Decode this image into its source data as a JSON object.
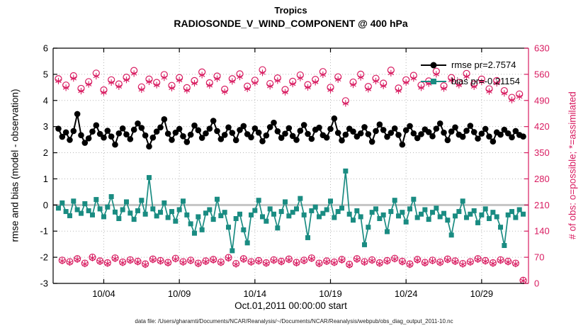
{
  "caption": "data file: /Users/gharamti/Documents/NCAR/Reanalysis/~/Documents/NCAR/Reanalysis/webpub/obs_diag_output_2011-10.nc",
  "colors": {
    "rmse": "#000000",
    "bias": "#1a8c82",
    "obs": "#d81b60",
    "grid": "#b8b8b8",
    "zero_line": "#c4c4c4",
    "axis": "#000000"
  },
  "chart_data": {
    "type": "line",
    "title": "Tropics",
    "subtitle": "RADIOSONDE_V_WIND_COMPONENT @ 400 hPa",
    "x_axis": {
      "label": "Oct.01,2011 00:00:00 start",
      "start_day": 0,
      "step_days": 0.25,
      "count": 124,
      "range_days": [
        -0.35,
        31.1
      ],
      "ticks": [
        {
          "day": 3,
          "label": "10/04"
        },
        {
          "day": 8,
          "label": "10/09"
        },
        {
          "day": 13,
          "label": "10/14"
        },
        {
          "day": 18,
          "label": "10/19"
        },
        {
          "day": 23,
          "label": "10/24"
        },
        {
          "day": 28,
          "label": "10/29"
        }
      ]
    },
    "y_left": {
      "label": "rmse and bias (model - observation)",
      "range": [
        -3,
        6
      ],
      "ticks": [
        -3,
        -2,
        -1,
        0,
        1,
        2,
        3,
        4,
        5,
        6
      ]
    },
    "y_right": {
      "label": "# of obs: o=possible; *=assimilated",
      "range": [
        0,
        630
      ],
      "ticks": [
        0,
        70,
        140,
        210,
        280,
        350,
        420,
        490,
        560,
        630
      ]
    },
    "legend": [
      {
        "series": "rmse",
        "label": "rmse pr=2.7574"
      },
      {
        "series": "bias",
        "label": "bias pr=-0.21154"
      }
    ],
    "series": [
      {
        "name": "rmse",
        "axis": "left",
        "marker": "circle-filled",
        "color": "#000000",
        "line": true,
        "line_width": 2,
        "values": [
          2.92,
          2.61,
          2.78,
          2.49,
          2.83,
          3.48,
          2.67,
          2.38,
          2.55,
          2.81,
          3.05,
          2.72,
          2.58,
          2.84,
          2.62,
          2.31,
          2.74,
          2.93,
          2.7,
          2.52,
          2.88,
          3.12,
          2.95,
          2.66,
          2.24,
          2.58,
          2.81,
          2.97,
          3.28,
          2.73,
          2.49,
          2.77,
          2.91,
          2.63,
          2.41,
          2.69,
          3.04,
          2.86,
          2.57,
          2.74,
          2.92,
          3.22,
          2.83,
          2.52,
          2.68,
          2.97,
          2.76,
          2.48,
          2.87,
          3.02,
          2.71,
          2.59,
          2.93,
          2.77,
          2.44,
          2.66,
          2.98,
          3.15,
          2.82,
          2.57,
          2.73,
          2.94,
          2.64,
          2.49,
          2.84,
          3.06,
          2.72,
          2.53,
          2.88,
          2.96,
          2.67,
          2.58,
          2.91,
          3.31,
          2.76,
          2.47,
          2.69,
          2.92,
          2.81,
          2.62,
          2.74,
          2.98,
          2.71,
          2.42,
          2.83,
          3.08,
          2.87,
          2.61,
          2.76,
          2.93,
          2.68,
          2.31,
          2.86,
          3.02,
          2.74,
          2.56,
          2.71,
          2.89,
          2.79,
          2.63,
          2.92,
          3.12,
          2.77,
          2.48,
          2.81,
          2.97,
          2.69,
          2.61,
          2.84,
          3.03,
          2.79,
          2.54,
          2.73,
          2.91,
          2.62,
          2.43,
          2.78,
          2.69,
          2.88,
          2.74,
          2.59,
          2.83,
          2.68,
          2.62
        ]
      },
      {
        "name": "bias",
        "axis": "left",
        "marker": "square-filled",
        "color": "#1a8c82",
        "line": true,
        "line_width": 1.7,
        "values": [
          -0.12,
          0.08,
          -0.25,
          -0.41,
          0.15,
          -0.18,
          -0.32,
          0.05,
          -0.22,
          -0.38,
          0.21,
          -0.15,
          -0.45,
          -0.08,
          0.32,
          -0.27,
          -0.52,
          -0.18,
          0.12,
          -0.31,
          -0.55,
          -0.22,
          0.18,
          -0.35,
          1.05,
          -0.15,
          -0.42,
          -0.28,
          0.08,
          -0.48,
          -0.25,
          -0.62,
          -0.18,
          0.15,
          -0.38,
          -0.72,
          -1.08,
          -0.45,
          -0.95,
          -0.31,
          -0.18,
          -0.55,
          0.22,
          -0.41,
          -0.28,
          -0.85,
          -1.75,
          -0.52,
          -0.35,
          -0.95,
          -1.45,
          -0.38,
          -0.21,
          0.18,
          -0.45,
          -0.62,
          -0.15,
          -0.35,
          -0.88,
          -0.25,
          0.12,
          -0.42,
          -0.28,
          -0.15,
          0.25,
          -0.38,
          -1.25,
          -0.22,
          -0.08,
          -0.45,
          -0.32,
          -0.18,
          0.15,
          -0.48,
          -0.25,
          -0.12,
          1.3,
          -0.35,
          -0.58,
          -0.22,
          -0.45,
          -1.52,
          -0.85,
          -0.28,
          -0.15,
          -0.52,
          -0.38,
          -1.02,
          -0.25,
          0.18,
          -0.42,
          -0.28,
          -0.65,
          -0.15,
          0.22,
          -0.48,
          -0.35,
          -0.18,
          -0.55,
          -0.28,
          -0.12,
          -0.45,
          -0.32,
          -0.58,
          -1.15,
          -0.42,
          -0.25,
          0.15,
          -0.48,
          -0.35,
          -0.22,
          -0.68,
          -0.38,
          -0.15,
          -0.52,
          -0.28,
          -0.45,
          -0.85,
          -1.55,
          -0.38,
          -0.25,
          -0.48,
          -0.18,
          -0.35
        ]
      },
      {
        "name": "obs_possible",
        "axis": "right",
        "marker": "circle-open",
        "color": "#d81b60",
        "line": false,
        "values": [
          548,
          62,
          531,
          58,
          556,
          66,
          522,
          54,
          540,
          70,
          563,
          60,
          518,
          55,
          545,
          68,
          534,
          57,
          552,
          63,
          570,
          59,
          526,
          52,
          547,
          65,
          538,
          61,
          559,
          56,
          530,
          67,
          551,
          58,
          524,
          62,
          543,
          54,
          566,
          60,
          537,
          64,
          555,
          57,
          520,
          69,
          548,
          53,
          561,
          66,
          528,
          58,
          544,
          61,
          572,
          55,
          535,
          63,
          550,
          59,
          519,
          65,
          541,
          56,
          558,
          62,
          532,
          68,
          546,
          54,
          567,
          60,
          525,
          57,
          553,
          64,
          489,
          51,
          539,
          66,
          560,
          58,
          527,
          63,
          549,
          55,
          536,
          61,
          571,
          67,
          523,
          59,
          545,
          52,
          557,
          64,
          531,
          56,
          542,
          62,
          568,
          57,
          529,
          65,
          551,
          60,
          538,
          53,
          562,
          58,
          534,
          66,
          547,
          61,
          521,
          55,
          543,
          63,
          516,
          59,
          498,
          54,
          507,
          8
        ]
      },
      {
        "name": "obs_assimilated",
        "axis": "right",
        "marker": "asterisk",
        "color": "#d81b60",
        "line": false,
        "values": [
          542,
          60,
          524,
          56,
          549,
          64,
          515,
          52,
          533,
          68,
          555,
          58,
          511,
          53,
          538,
          66,
          527,
          55,
          545,
          61,
          562,
          57,
          519,
          50,
          540,
          63,
          531,
          59,
          551,
          54,
          523,
          65,
          544,
          56,
          517,
          60,
          536,
          52,
          558,
          58,
          530,
          62,
          548,
          55,
          513,
          67,
          541,
          51,
          553,
          64,
          521,
          56,
          537,
          59,
          564,
          53,
          528,
          61,
          543,
          57,
          512,
          63,
          534,
          54,
          550,
          60,
          525,
          66,
          539,
          52,
          559,
          58,
          518,
          55,
          546,
          62,
          482,
          49,
          532,
          64,
          552,
          56,
          520,
          61,
          542,
          53,
          529,
          59,
          563,
          65,
          516,
          57,
          538,
          50,
          549,
          62,
          524,
          54,
          535,
          60,
          560,
          55,
          522,
          63,
          544,
          58,
          531,
          51,
          554,
          56,
          527,
          64,
          540,
          59,
          514,
          53,
          536,
          61,
          509,
          57,
          491,
          52,
          500,
          7
        ]
      }
    ]
  }
}
